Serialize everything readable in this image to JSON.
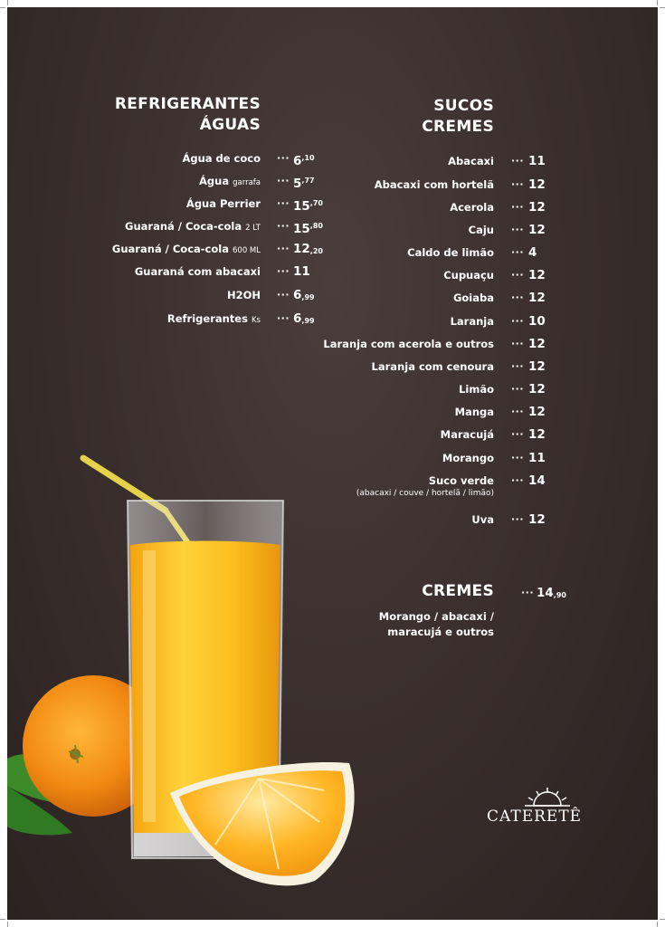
{
  "left_section": {
    "title_line1": "REFRIGERANTES",
    "title_line2": "ÁGUAS",
    "items": [
      {
        "name": "Água de coco",
        "qualifier": "",
        "price": "6",
        "cents": ",10",
        "cents_style": "sup"
      },
      {
        "name": "Água",
        "qualifier": "garrafa",
        "price": "5",
        "cents": ",77",
        "cents_style": "sup"
      },
      {
        "name": "Água Perrier",
        "qualifier": "",
        "price": "15",
        "cents": ",70",
        "cents_style": "sup"
      },
      {
        "name": "Guaraná / Coca-cola",
        "qualifier": "2 LT",
        "price": "15",
        "cents": ",80",
        "cents_style": "sup"
      },
      {
        "name": "Guaraná / Coca-cola",
        "qualifier": "600 ML",
        "price": "12",
        "cents": ",20",
        "cents_style": "sub"
      },
      {
        "name": "Guaraná com abacaxi",
        "qualifier": "",
        "price": "11",
        "cents": "",
        "cents_style": ""
      },
      {
        "name": "H2OH",
        "qualifier": "",
        "price": "6",
        "cents": ",99",
        "cents_style": "sub"
      },
      {
        "name": "Refrigerantes",
        "qualifier": "Ks",
        "price": "6",
        "cents": ",99",
        "cents_style": "sub"
      }
    ]
  },
  "right_section": {
    "title_line1": "SUCOS",
    "title_line2": "CREMES",
    "items": [
      {
        "name": "Abacaxi",
        "price": "11"
      },
      {
        "name": "Abacaxi com hortelã",
        "price": "12"
      },
      {
        "name": "Acerola",
        "price": "12"
      },
      {
        "name": "Caju",
        "price": "12"
      },
      {
        "name": "Caldo de limão",
        "price": "4"
      },
      {
        "name": "Cupuaçu",
        "price": "12"
      },
      {
        "name": "Goiaba",
        "price": "12"
      },
      {
        "name": "Laranja",
        "price": "10"
      },
      {
        "name": "Laranja com acerola e outros",
        "price": "12"
      },
      {
        "name": "Laranja com cenoura",
        "price": "12"
      },
      {
        "name": "Limão",
        "price": "12"
      },
      {
        "name": "Manga",
        "price": "12"
      },
      {
        "name": "Maracujá",
        "price": "12"
      },
      {
        "name": "Morango",
        "price": "11"
      },
      {
        "name": "Suco verde",
        "price": "14",
        "note": "(abacaxi / couve / hortelã / limão)"
      },
      {
        "name": "Uva",
        "price": "12"
      }
    ]
  },
  "cremes_section": {
    "title": "CREMES",
    "price": "14",
    "cents": ",90",
    "desc_line1": "Morango / abacaxi /",
    "desc_line2": "maracujá e outros"
  },
  "dots": "···",
  "logo": {
    "text": "CATERETÊ",
    "icon": "sun-icon"
  },
  "colors": {
    "background": "#3b302e",
    "text": "#ffffff",
    "orange": "#f59a1c",
    "juice": "#f7b41a"
  }
}
